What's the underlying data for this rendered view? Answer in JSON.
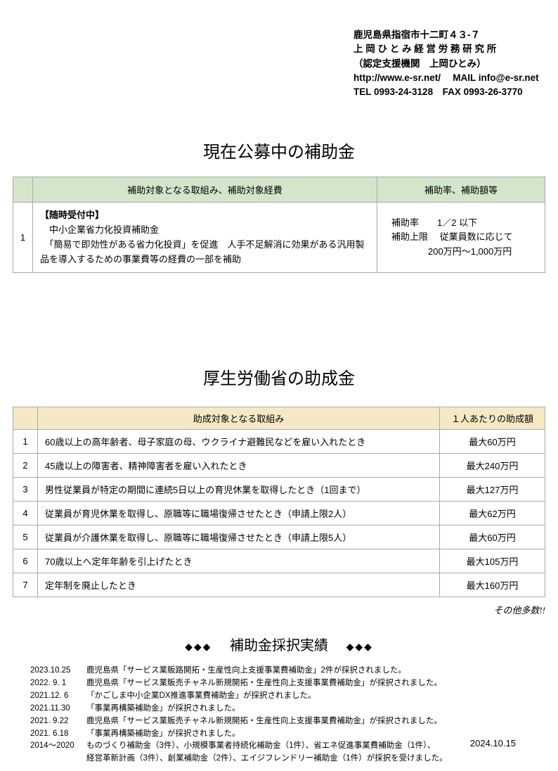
{
  "header": {
    "line1": "鹿児島県指宿市十二町４３-７",
    "line2": "上 岡 ひ と み 経 営 労 務 研 究 所",
    "line3": "（認定支援機関　上岡ひとみ）",
    "line4": "http://www.e-sr.net/　 MAIL info@e-sr.net",
    "line5": "TEL 0993-24-3128　FAX 0993-26-3770"
  },
  "section1": {
    "title": "現在公募中の補助金",
    "headers": {
      "desc": "補助対象となる取組み、補助対象経費",
      "rate": "補助率、補助額等"
    },
    "rows": [
      {
        "num": "1",
        "desc_bold": "【随時受付中】",
        "desc_line1": "　中小企業省力化投資補助金",
        "desc_line2": "　「簡易で即効性がある省力化投資」を促進　人手不足解消に効果がある汎用製品を導入するための事業費等の経費の一部を補助",
        "rate_line1": "補助率　　1／2 以下",
        "rate_line2": "補助上限　 従業員数に応じて",
        "rate_line3": "　　　　200万円～1,000万円"
      }
    ]
  },
  "section2": {
    "title": "厚生労働省の助成金",
    "headers": {
      "desc": "助成対象となる取組み",
      "amt": "１人あたりの助成額"
    },
    "rows": [
      {
        "num": "1",
        "desc": "60歳以上の高年齢者、母子家庭の母、ウクライナ避難民などを雇い入れたとき",
        "amt": "最大60万円"
      },
      {
        "num": "2",
        "desc": "45歳以上の障害者、精神障害者を雇い入れたとき",
        "amt": "最大240万円"
      },
      {
        "num": "3",
        "desc": "男性従業員が特定の期間に連続5日以上の育児休業を取得したとき（1回まで）",
        "amt": "最大127万円"
      },
      {
        "num": "4",
        "desc": "従業員が育児休業を取得し、原職等に職場復帰させたとき（申請上限2人）",
        "amt": "最大62万円"
      },
      {
        "num": "5",
        "desc": "従業員が介護休業を取得し、原職等に職場復帰させたとき（申請上限5人）",
        "amt": "最大60万円"
      },
      {
        "num": "6",
        "desc": "70歳以上へ定年年齢を引上げたとき",
        "amt": "最大105万円"
      },
      {
        "num": "7",
        "desc": "定年制を廃止したとき",
        "amt": "最大160万円"
      }
    ],
    "note": "その他多数!!"
  },
  "section3": {
    "diamonds": "◆◆◆",
    "title": "補助金採択実績",
    "records": [
      {
        "date": "2023.10.25",
        "text": "鹿児島県「サービス業販路開拓・生産性向上支援事業費補助金」2件が採択されました。"
      },
      {
        "date": "2022. 9. 1",
        "text": "鹿児島県「サービス業販売チャネル新規開拓・生産性向上支援事業費補助金」が採択されました。"
      },
      {
        "date": "2021.12. 6",
        "text": "「かごしま中小企業DX推進事業費補助金」が採択されました。"
      },
      {
        "date": "2021.11.30",
        "text": "「事業再構築補助金」が採択されました。"
      },
      {
        "date": "2021. 9.22",
        "text": "鹿児島県「サービス業販売チャネル新規開拓・生産性向上支援事業費補助金」が採択されました。"
      },
      {
        "date": "2021. 6.18",
        "text": "「事業再構築補助金」が採択されました。"
      },
      {
        "date": "2014～2020",
        "text": "ものづくり補助金（3件）、小規模事業者持続化補助金（1件）、省エネ促進事業費補助金（1件）、"
      },
      {
        "date": "",
        "text": "経営革新計画（3件）、創業補助金（2件）、エイジフレンドリー補助金（1件）が採択を受けました。"
      }
    ]
  },
  "footer_date": "2024.10.15"
}
